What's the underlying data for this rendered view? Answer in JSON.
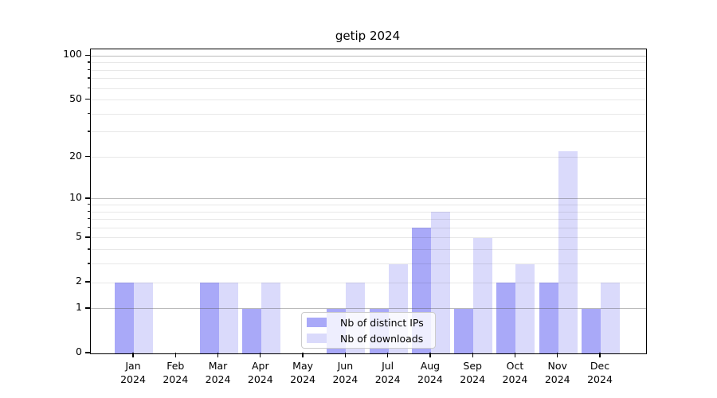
{
  "chart_data": {
    "type": "bar",
    "title": "getip 2024",
    "categories": [
      "Jan",
      "Feb",
      "Mar",
      "Apr",
      "May",
      "Jun",
      "Jul",
      "Aug",
      "Sep",
      "Oct",
      "Nov",
      "Dec"
    ],
    "category_year": "2024",
    "series": [
      {
        "name": "Nb of distinct IPs",
        "color": "#a9a9f8",
        "values": [
          2,
          0,
          2,
          1,
          0,
          1,
          1,
          6,
          1,
          2,
          2,
          1
        ]
      },
      {
        "name": "Nb of downloads",
        "color": "#dadafb",
        "values": [
          2,
          0,
          2,
          2,
          0,
          2,
          3,
          8,
          5,
          3,
          22,
          2
        ]
      }
    ],
    "yscale": "log1p",
    "ylim": [
      0,
      111
    ],
    "yticks": [
      0,
      1,
      2,
      5,
      10,
      20,
      50,
      100
    ],
    "major_gridlines": [
      1,
      10,
      100
    ],
    "minor_gridlines": [
      2,
      3,
      4,
      5,
      6,
      7,
      8,
      9,
      20,
      30,
      40,
      50,
      60,
      70,
      80,
      90
    ],
    "grid": true,
    "legend_position": "lower center"
  }
}
